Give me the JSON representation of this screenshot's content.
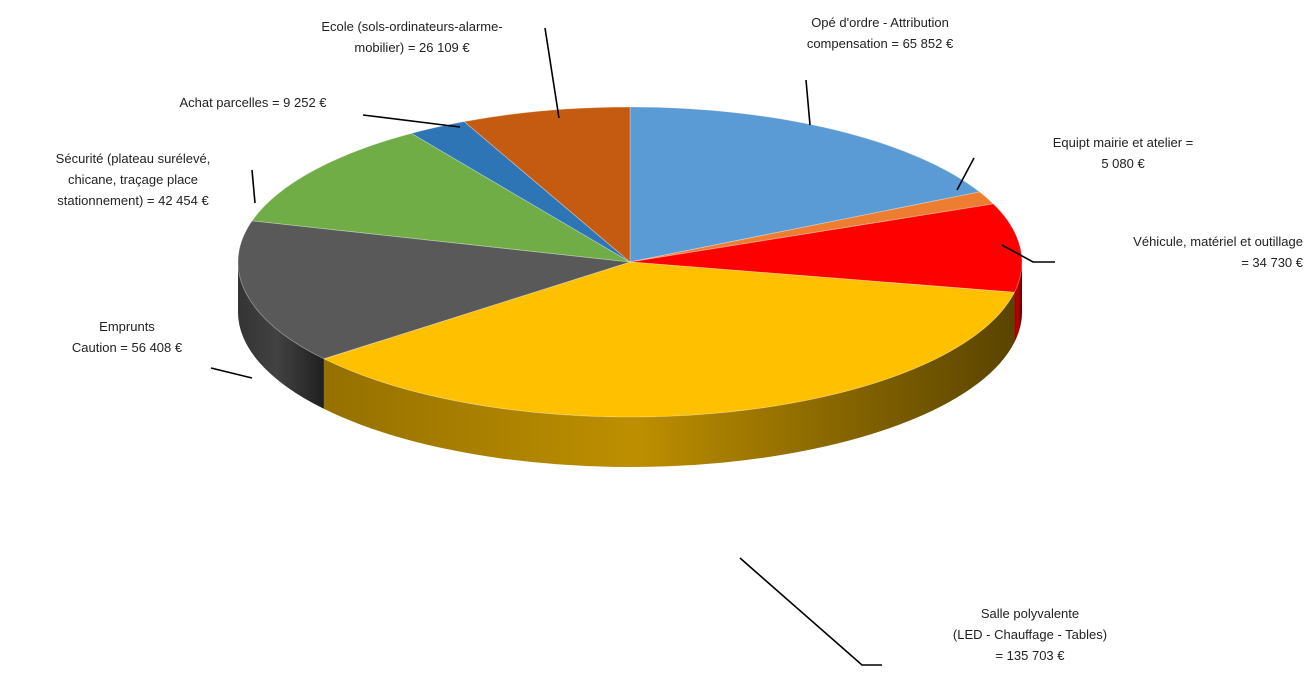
{
  "chart_data": {
    "type": "pie",
    "title": "",
    "slices": [
      {
        "name": "Opé d'ordre - Attribution compensation",
        "value": 65852,
        "color": "#5B9BD5",
        "label": [
          "Opé d'ordre - Attribution",
          "compensation = 65 852 €"
        ]
      },
      {
        "name": "Equipt mairie et atelier",
        "value": 5080,
        "color": "#ED7D31",
        "label": [
          "Equipt mairie et atelier =",
          "5 080 €"
        ]
      },
      {
        "name": "Véhicule, matériel et outillage",
        "value": 34730,
        "color": "#FF0000",
        "label": [
          "Véhicule, matériel et outillage",
          "= 34 730 €"
        ]
      },
      {
        "name": "Salle polyvalente (LED - Chauffage - Tables)",
        "value": 135703,
        "color": "#FFC000",
        "label": [
          "Salle polyvalente",
          "(LED - Chauffage - Tables)",
          "= 135 703 €"
        ]
      },
      {
        "name": "Emprunts Caution",
        "value": 56408,
        "color": "#595959",
        "label": [
          "Emprunts",
          "Caution = 56 408 €"
        ]
      },
      {
        "name": "Sécurité (plateau surélevé, chicane, traçage place stationnement)",
        "value": 42454,
        "color": "#70AD47",
        "label": [
          "Sécurité (plateau surélevé,",
          "chicane, traçage place",
          "stationnement) = 42 454 €"
        ]
      },
      {
        "name": "Achat parcelles",
        "value": 9252,
        "color": "#2E75B6",
        "label": [
          "Achat parcelles = 9 252 €"
        ]
      },
      {
        "name": "Ecole (sols-ordinateurs-alarme-mobilier)",
        "value": 26109,
        "color": "#C55A11",
        "label": [
          "Ecole (sols-ordinateurs-alarme-",
          "mobilier) = 26 109 €"
        ]
      }
    ],
    "legend": "none",
    "style": "3d"
  }
}
